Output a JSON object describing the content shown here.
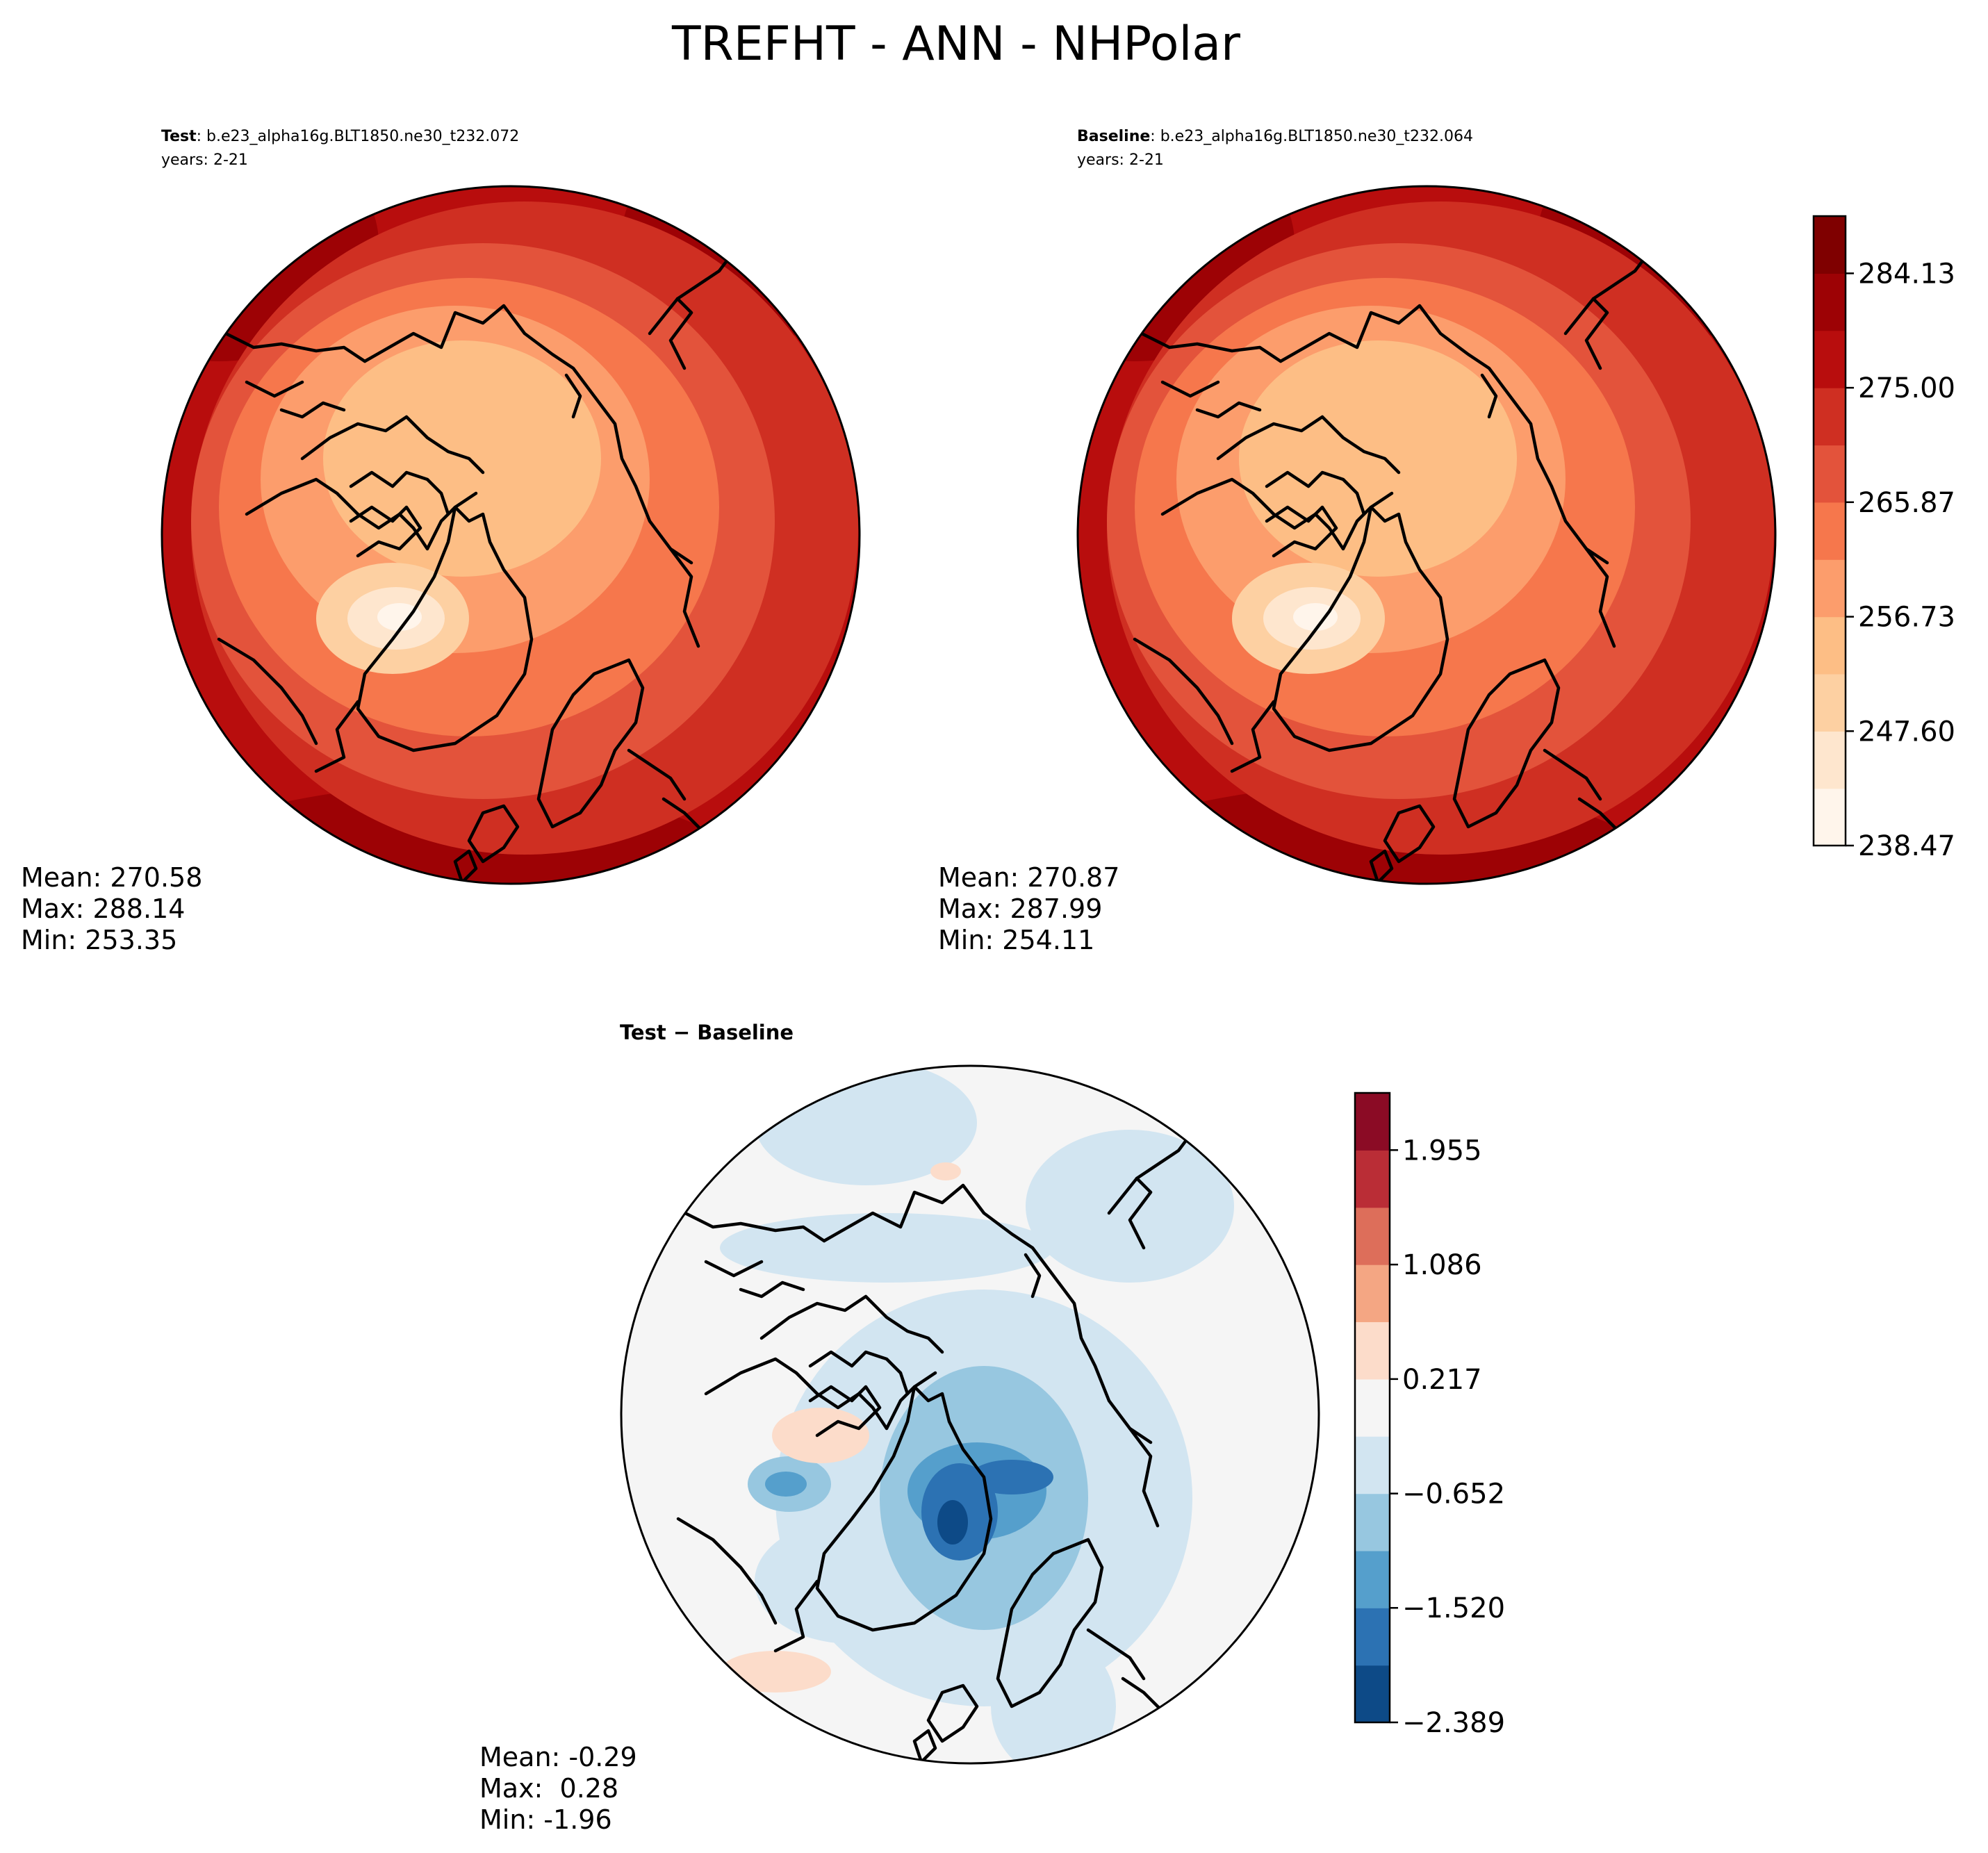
{
  "figure_title": "TREFHT - ANN - NHPolar",
  "chart_data": [
    {
      "type": "heatmap",
      "projection": "north-polar-stereographic",
      "panel": "test",
      "title_label": "Test",
      "title_separator": ":",
      "case_name": "b.e23_alpha16g.BLT1850.ne30_t232.072",
      "years": "years: 2-21",
      "stats": {
        "mean": "Mean: 270.58",
        "max": "Max: 288.14",
        "min": "Min: 253.35"
      },
      "stats_values": {
        "mean": 270.58,
        "max": 288.14,
        "min": 253.35
      },
      "colormap": "Reds"
    },
    {
      "type": "heatmap",
      "projection": "north-polar-stereographic",
      "panel": "baseline",
      "title_label": "Baseline",
      "title_separator": ":",
      "case_name": "b.e23_alpha16g.BLT1850.ne30_t232.064",
      "years": "years: 2-21",
      "stats": {
        "mean": "Mean: 270.87",
        "max": "Max: 287.99",
        "min": "Min: 254.11"
      },
      "stats_values": {
        "mean": 270.87,
        "max": 287.99,
        "min": 254.11
      },
      "colormap": "Reds",
      "colorbar": {
        "levels": [
          238.47,
          243.03,
          247.6,
          252.17,
          256.73,
          261.3,
          265.87,
          270.43,
          275.0,
          279.57,
          284.13,
          288.7
        ],
        "tick_values": [
          238.47,
          247.6,
          256.73,
          265.87,
          275.0,
          284.13
        ],
        "tick_labels": [
          "238.47",
          "247.60",
          "256.73",
          "265.87",
          "275.00",
          "284.13"
        ],
        "colors": [
          "#fff5eb",
          "#fee6ce",
          "#fdd0a2",
          "#fdbe85",
          "#fc9d6c",
          "#f6774c",
          "#e3533b",
          "#cf2f22",
          "#b80d0d",
          "#9d0205",
          "#7f0000"
        ]
      }
    },
    {
      "type": "heatmap",
      "projection": "north-polar-stereographic",
      "panel": "difference",
      "title_test": "Test",
      "title_minus": "−",
      "title_base": "Baseline",
      "stats": {
        "mean": "Mean: -0.29",
        "max": "Max:  0.28",
        "min": "Min: -1.96"
      },
      "stats_values": {
        "mean": -0.29,
        "max": 0.28,
        "min": -1.96
      },
      "colormap": "RdBu_r",
      "colorbar": {
        "levels": [
          -2.389,
          -1.955,
          -1.52,
          -1.086,
          -0.652,
          -0.217,
          0.217,
          0.652,
          1.086,
          1.52,
          1.955,
          2.389
        ],
        "tick_values": [
          -2.389,
          -1.52,
          -0.652,
          0.217,
          1.086,
          1.955
        ],
        "tick_labels": [
          "−2.389",
          "−1.520",
          "−0.652",
          "0.217",
          "1.086",
          "1.955"
        ],
        "colors": [
          "#0d4a87",
          "#2c72b3",
          "#559fcc",
          "#97c7e0",
          "#d2e5f1",
          "#f5f5f5",
          "#fcdcca",
          "#f4a683",
          "#dd6e5a",
          "#ba2d36",
          "#8b0b25"
        ]
      }
    }
  ]
}
